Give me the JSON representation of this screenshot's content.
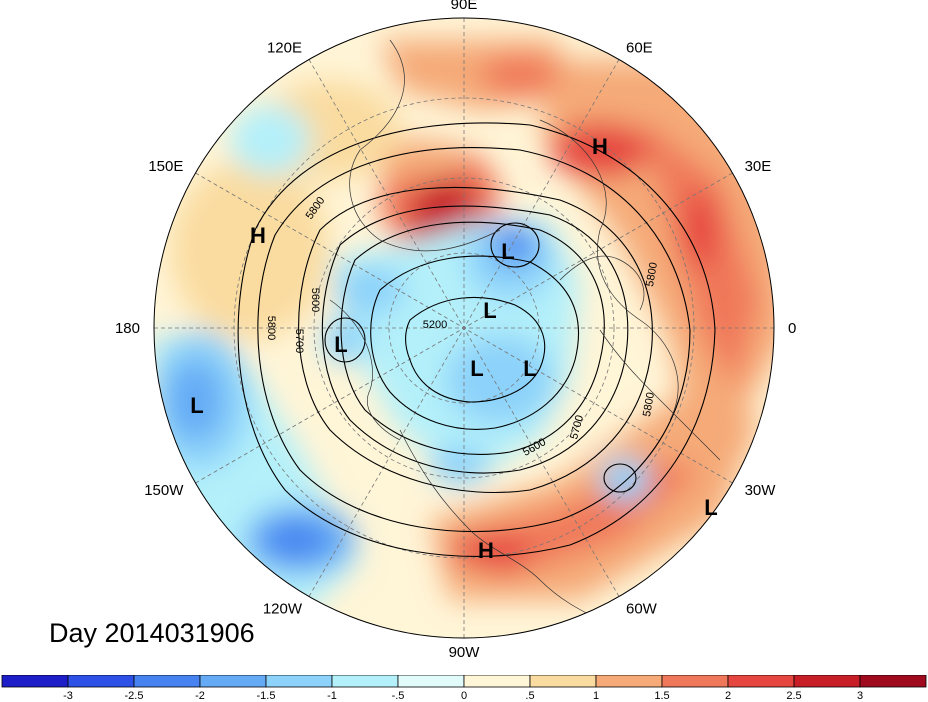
{
  "title": "Day 2014031906",
  "longitude_labels": [
    {
      "text": "90E",
      "deg": 90
    },
    {
      "text": "60E",
      "deg": 60
    },
    {
      "text": "30E",
      "deg": 30
    },
    {
      "text": "0",
      "deg": 0
    },
    {
      "text": "30W",
      "deg": -30
    },
    {
      "text": "60W",
      "deg": -60
    },
    {
      "text": "90W",
      "deg": -90
    },
    {
      "text": "120W",
      "deg": -120
    },
    {
      "text": "150W",
      "deg": -150
    },
    {
      "text": "180",
      "deg": 180
    },
    {
      "text": "150E",
      "deg": 150
    },
    {
      "text": "120E",
      "deg": 120
    }
  ],
  "pressure_centers": [
    {
      "type": "H",
      "region": "eastern-europe"
    },
    {
      "type": "H",
      "region": "north-pacific"
    },
    {
      "type": "H",
      "region": "caribbean"
    },
    {
      "type": "L",
      "region": "barents-sea"
    },
    {
      "type": "L",
      "region": "arctic-ocean"
    },
    {
      "type": "L",
      "region": "east-siberia"
    },
    {
      "type": "L",
      "region": "baffin-bay"
    },
    {
      "type": "L",
      "region": "greenland-south"
    },
    {
      "type": "L",
      "region": "gulf-of-alaska"
    },
    {
      "type": "L",
      "region": "subtropical-atlantic"
    }
  ],
  "contour_labels": [
    "5800",
    "5600",
    "5700",
    "5800",
    "5200",
    "5800",
    "5700",
    "5600",
    "5800"
  ],
  "colorbar": {
    "ticks": [
      "-3",
      "-2.5",
      "-2",
      "-1.5",
      "-1",
      "-.5",
      "0",
      ".5",
      "1",
      "1.5",
      "2",
      "2.5",
      "3"
    ],
    "colors": [
      "#1e1ec8",
      "#2d50e6",
      "#4682f0",
      "#64aaf5",
      "#8cd2fa",
      "#b4f0fa",
      "#e1fafa",
      "#fff5d7",
      "#fadca0",
      "#f5aa78",
      "#f0785a",
      "#e64640",
      "#c81e28",
      "#a00a1e"
    ]
  }
}
